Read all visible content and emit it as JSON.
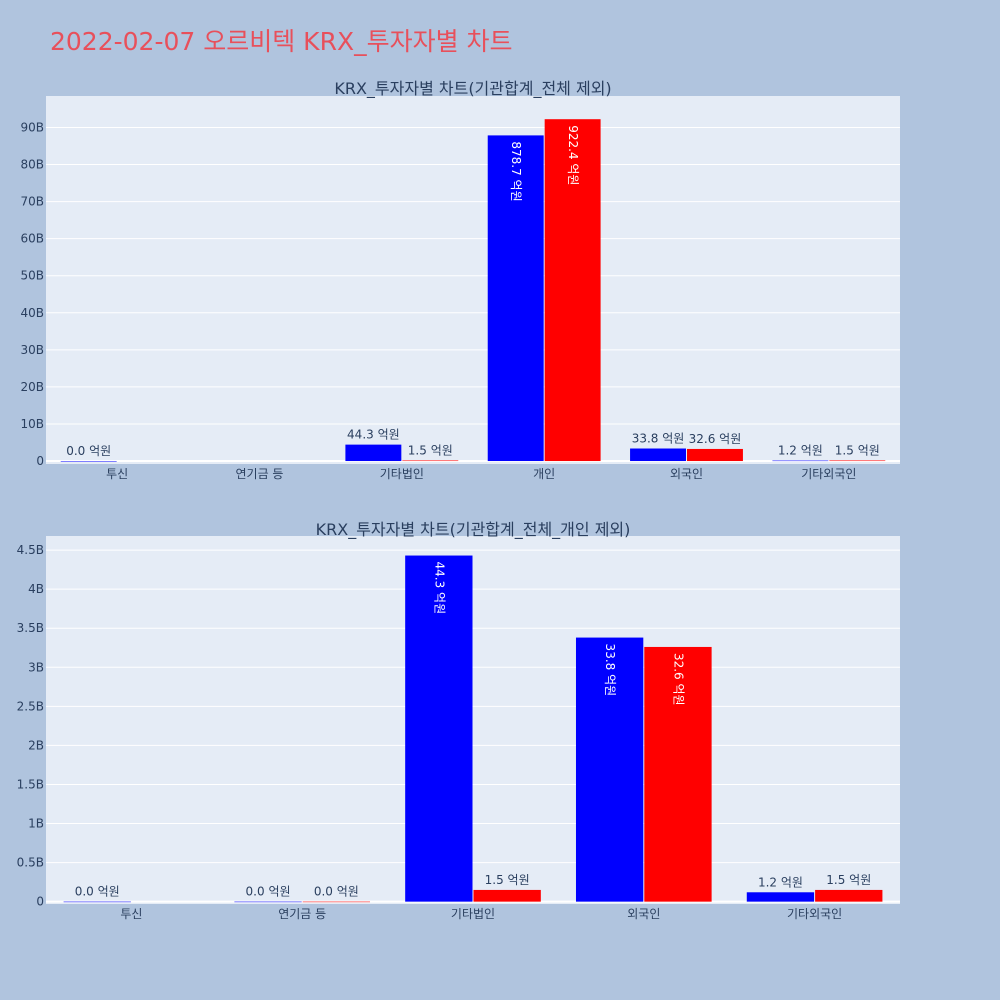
{
  "page_title": "2022-02-07 오르비텍 KRX_투자자별 차트",
  "colors": {
    "series_a": "#0000ff",
    "series_b": "#ff0000",
    "plot_bg": "#e5ecf6",
    "page_bg": "#b0c4de",
    "title": "#e8505b"
  },
  "chart_data": [
    {
      "type": "bar",
      "title": "KRX_투자자별 차트(기관합계_전체 제외)",
      "categories": [
        "투신",
        "연기금 등",
        "기타법인",
        "개인",
        "외국인",
        "기타외국인"
      ],
      "y_tick_values": [
        0,
        10,
        20,
        30,
        40,
        50,
        60,
        70,
        80,
        90
      ],
      "y_tick_labels": [
        "0",
        "10B",
        "20B",
        "30B",
        "40B",
        "50B",
        "60B",
        "70B",
        "80B",
        "90B"
      ],
      "ylim": [
        -0.8,
        98.5
      ],
      "y_unit": "B",
      "series": [
        {
          "values": [
            0.0,
            null,
            4.43,
            87.87,
            3.38,
            0.12
          ],
          "labels": [
            "0.0 억원",
            null,
            "44.3 억원",
            "878.7 억원",
            "33.8 억원",
            "1.2 억원"
          ]
        },
        {
          "values": [
            null,
            null,
            0.15,
            92.24,
            3.26,
            0.15
          ],
          "labels": [
            null,
            null,
            "1.5 억원",
            "922.4 억원",
            "32.6 억원",
            "1.5 억원"
          ]
        }
      ]
    },
    {
      "type": "bar",
      "title": "KRX_투자자별 차트(기관합계_전체_개인 제외)",
      "categories": [
        "투신",
        "연기금 등",
        "기타법인",
        "외국인",
        "기타외국인"
      ],
      "y_tick_values": [
        0,
        0.5,
        1,
        1.5,
        2,
        2.5,
        3,
        3.5,
        4,
        4.5
      ],
      "y_tick_labels": [
        "0",
        "0.5B",
        "1B",
        "1.5B",
        "2B",
        "2.5B",
        "3B",
        "3.5B",
        "4B",
        "4.5B"
      ],
      "ylim": [
        -0.03,
        4.68
      ],
      "y_unit": "B",
      "series": [
        {
          "values": [
            0.0,
            0.0,
            4.43,
            3.38,
            0.12
          ],
          "labels": [
            "0.0 억원",
            "0.0 억원",
            "44.3 억원",
            "33.8 억원",
            "1.2 억원"
          ]
        },
        {
          "values": [
            null,
            0.0,
            0.15,
            3.26,
            0.15
          ],
          "labels": [
            null,
            "0.0 억원",
            "1.5 억원",
            "32.6 억원",
            "1.5 억원"
          ]
        }
      ]
    }
  ]
}
